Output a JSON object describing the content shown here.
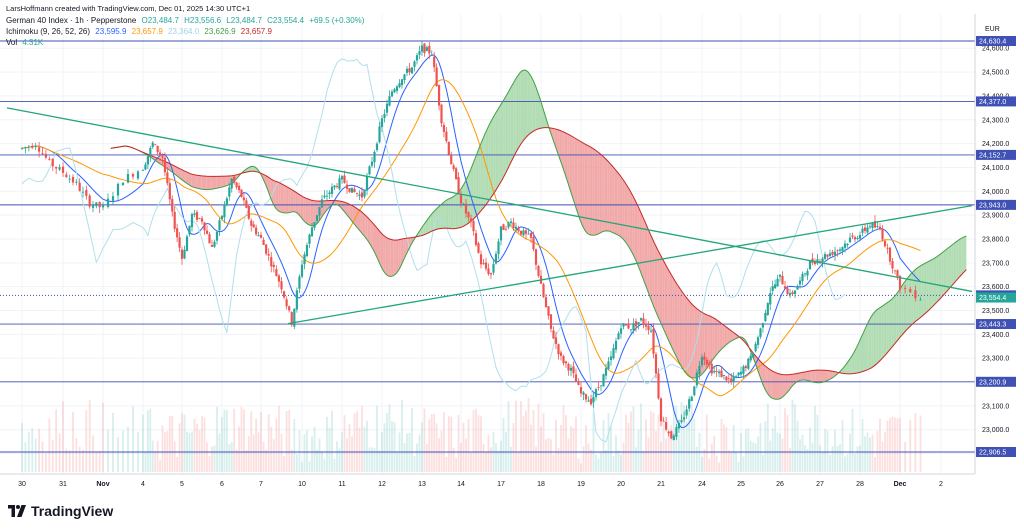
{
  "header": {
    "credit": "LarsHoffmann created with TradingView.com, Dec 01, 2025 14:30 UTC+1",
    "symbol_line": {
      "name": "German 40 Index · 1h · Pepperstone",
      "open": "O23,484.7",
      "high": "H23,556.6",
      "low": "L23,484.7",
      "close": "C23,554.4",
      "change": "+69.5 (+0.30%)"
    },
    "ichimoku_line": {
      "name": "Ichimoku (9, 26, 52, 26)",
      "v1": "23,595.9",
      "v2": "23,657.9",
      "v3": "23,364.0",
      "v4": "23,626.9",
      "v5": "23,657.9"
    },
    "vol_line": {
      "name": "Vol",
      "value": "4.31K"
    }
  },
  "colors": {
    "up": "#26a69a",
    "down": "#ef5350",
    "tenkan": "#2962ff",
    "kijun": "#ff9800",
    "chikou": "#b2dfeb",
    "span_a": "#43a047",
    "span_b": "#c62828",
    "cloud_bull": "#a5d6a7",
    "cloud_bear": "#ef9a9a",
    "hline": "#3f51b5",
    "trend": "#21a67a"
  },
  "brand": "TradingView",
  "chart_data": {
    "type": "candlestick",
    "instrument": "German 40 Index",
    "timeframe": "1h",
    "currency": "EUR",
    "y_range": [
      22870,
      24670
    ],
    "y_ticks": [
      22900,
      23000,
      23100,
      23200,
      23300,
      23400,
      23500,
      23600,
      23700,
      23800,
      23900,
      24000,
      24100,
      24200,
      24300,
      24400,
      24500,
      24600
    ],
    "x_ticks": [
      "30",
      "31",
      "Nov",
      "4",
      "5",
      "6",
      "7",
      "10",
      "11",
      "12",
      "13",
      "14",
      "17",
      "18",
      "19",
      "20",
      "21",
      "24",
      "25",
      "26",
      "27",
      "28",
      "Dec",
      "2"
    ],
    "levels": [
      {
        "value": "24,630.4",
        "price": 24630.4,
        "style": "solid"
      },
      {
        "value": "24,377.0",
        "price": 24377.0,
        "style": "solid"
      },
      {
        "value": "24,152.7",
        "price": 24152.7,
        "style": "solid"
      },
      {
        "value": "23,943.0",
        "price": 23943.0,
        "style": "solid"
      },
      {
        "value": "23,563.5",
        "price": 23563.5,
        "style": "dotted"
      },
      {
        "value": "23,443.3",
        "price": 23443.3,
        "style": "solid"
      },
      {
        "value": "23,200.9",
        "price": 23200.9,
        "style": "solid"
      },
      {
        "value": "22,906.5",
        "price": 22906.5,
        "style": "solid"
      }
    ],
    "last_price": {
      "value": "23,554.4",
      "price": 23554.4
    },
    "trendlines": [
      {
        "name": "descending",
        "from": [
          "Oct 30",
          24350
        ],
        "to": [
          "Dec 2",
          23580
        ]
      },
      {
        "name": "ascending",
        "from": [
          "Nov 7",
          23445
        ],
        "to": [
          "Dec 2",
          23940
        ]
      }
    ],
    "close_path": [
      [
        "30",
        24180
      ],
      [
        "30",
        24200
      ],
      [
        "30",
        24120
      ],
      [
        "31",
        24080
      ],
      [
        "31",
        24030
      ],
      [
        "31",
        23950
      ],
      [
        "Nov",
        23930
      ],
      [
        "Nov",
        24050
      ],
      [
        "4",
        24100
      ],
      [
        "4",
        24200
      ],
      [
        "4",
        24140
      ],
      [
        "4",
        23900
      ],
      [
        "5",
        23720
      ],
      [
        "5",
        23900
      ],
      [
        "5",
        23880
      ],
      [
        "5",
        23760
      ],
      [
        "6",
        23900
      ],
      [
        "6",
        24050
      ],
      [
        "6",
        23980
      ],
      [
        "6",
        23860
      ],
      [
        "7",
        23800
      ],
      [
        "7",
        23700
      ],
      [
        "7",
        23600
      ],
      [
        "7",
        23450
      ],
      [
        "10",
        23700
      ],
      [
        "10",
        23850
      ],
      [
        "10",
        23960
      ],
      [
        "10",
        24010
      ],
      [
        "11",
        24050
      ],
      [
        "11",
        24000
      ],
      [
        "11",
        23980
      ],
      [
        "11",
        24130
      ],
      [
        "12",
        24300
      ],
      [
        "12",
        24420
      ],
      [
        "12",
        24480
      ],
      [
        "12",
        24520
      ],
      [
        "13",
        24600
      ],
      [
        "13",
        24580
      ],
      [
        "13",
        24300
      ],
      [
        "13",
        24120
      ],
      [
        "14",
        23960
      ],
      [
        "14",
        23860
      ],
      [
        "14",
        23700
      ],
      [
        "14",
        23650
      ],
      [
        "17",
        23840
      ],
      [
        "17",
        23870
      ],
      [
        "17",
        23830
      ],
      [
        "17",
        23800
      ],
      [
        "18",
        23600
      ],
      [
        "18",
        23420
      ],
      [
        "18",
        23300
      ],
      [
        "18",
        23250
      ],
      [
        "19",
        23150
      ],
      [
        "19",
        23120
      ],
      [
        "19",
        23200
      ],
      [
        "19",
        23300
      ],
      [
        "20",
        23440
      ],
      [
        "20",
        23430
      ],
      [
        "20",
        23460
      ],
      [
        "20",
        23420
      ],
      [
        "21",
        23050
      ],
      [
        "21",
        22970
      ],
      [
        "21",
        23030
      ],
      [
        "21",
        23150
      ],
      [
        "24",
        23320
      ],
      [
        "24",
        23250
      ],
      [
        "24",
        23230
      ],
      [
        "24",
        23200
      ],
      [
        "25",
        23240
      ],
      [
        "25",
        23300
      ],
      [
        "25",
        23420
      ],
      [
        "25",
        23580
      ],
      [
        "26",
        23640
      ],
      [
        "26",
        23560
      ],
      [
        "26",
        23620
      ],
      [
        "26",
        23700
      ],
      [
        "27",
        23720
      ],
      [
        "27",
        23740
      ],
      [
        "27",
        23760
      ],
      [
        "27",
        23800
      ],
      [
        "28",
        23820
      ],
      [
        "28",
        23860
      ],
      [
        "28",
        23840
      ],
      [
        "28",
        23720
      ],
      [
        "Dec",
        23600
      ],
      [
        "Dec",
        23554
      ]
    ]
  }
}
